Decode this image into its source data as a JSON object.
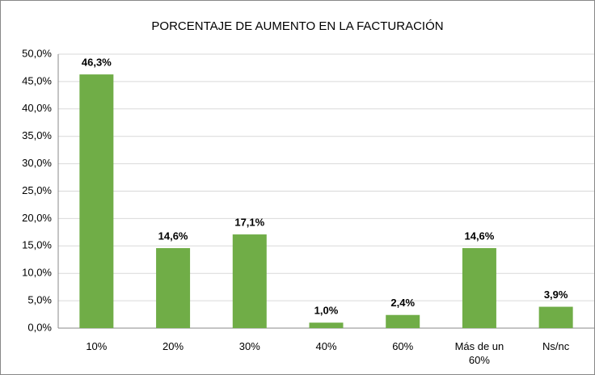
{
  "chart_data": {
    "type": "bar",
    "title": "PORCENTAJE DE AUMENTO  EN LA FACTURACIÓN",
    "categories": [
      "10%",
      "20%",
      "30%",
      "40%",
      "60%",
      "Más de un 60%",
      "Ns/nc"
    ],
    "values": [
      46.3,
      14.6,
      17.1,
      1.0,
      2.4,
      14.6,
      3.9
    ],
    "value_labels": [
      "46,3%",
      "14,6%",
      "17,1%",
      "1,0%",
      "2,4%",
      "14,6%",
      "3,9%"
    ],
    "color": "#70ad47",
    "ylim": [
      0,
      50
    ],
    "yticks": [
      {
        "value": 0,
        "label": "0,0%"
      },
      {
        "value": 5,
        "label": "5,0%"
      },
      {
        "value": 10,
        "label": "10,0%"
      },
      {
        "value": 15,
        "label": "15,0%"
      },
      {
        "value": 20,
        "label": "20,0%"
      },
      {
        "value": 25,
        "label": "25,0%"
      },
      {
        "value": 30,
        "label": "30,0%"
      },
      {
        "value": 35,
        "label": "35,0%"
      },
      {
        "value": 40,
        "label": "40,0%"
      },
      {
        "value": 45,
        "label": "45,0%"
      },
      {
        "value": 50,
        "label": "50,0%"
      }
    ],
    "grid": true
  }
}
